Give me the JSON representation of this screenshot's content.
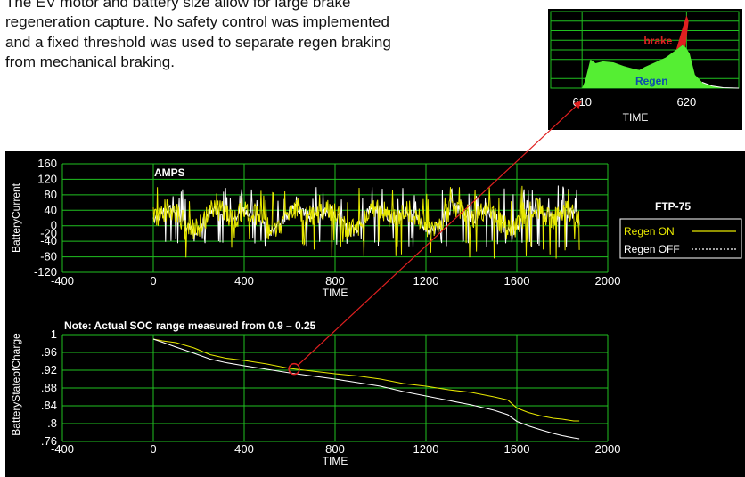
{
  "intro_text": "The EV motor and battery size allow for large brake regeneration capture. No safety control was implemented and a fixed threshold was used to separate regen braking from mechanical braking.",
  "colors": {
    "background": "#000000",
    "grid": "#20c020",
    "regen_on": "#e8e800",
    "regen_off": "#ffffff",
    "regen_fill": "#55ee33",
    "brake_fill": "#e02020",
    "arrow": "#e02020"
  },
  "chart_data": [
    {
      "id": "inset",
      "type": "area",
      "xlabel": "TIME",
      "x_ticks": [
        "610",
        "620"
      ],
      "xlim": [
        607,
        625
      ],
      "areas": [
        {
          "label": "Regen",
          "points": [
            [
              607,
              0
            ],
            [
              610,
              0
            ],
            [
              610.3,
              0.8
            ],
            [
              610.8,
              3.0
            ],
            [
              611.3,
              2.6
            ],
            [
              612,
              2.8
            ],
            [
              613,
              2.7
            ],
            [
              614,
              2.3
            ],
            [
              615,
              2.0
            ],
            [
              615.5,
              1.9
            ],
            [
              616,
              2.2
            ],
            [
              617,
              2.7
            ],
            [
              618,
              3.2
            ],
            [
              619,
              4.0
            ],
            [
              619.6,
              4.5
            ],
            [
              619.9,
              4.3
            ],
            [
              620.3,
              3.6
            ],
            [
              620.8,
              1.4
            ],
            [
              621.5,
              0.6
            ],
            [
              622.5,
              0.2
            ],
            [
              623.5,
              0.05
            ],
            [
              625,
              0
            ]
          ]
        },
        {
          "label": "brake",
          "points": [
            [
              619.0,
              4.0
            ],
            [
              619.6,
              4.5
            ],
            [
              619.9,
              4.3
            ],
            [
              620.2,
              7.0
            ],
            [
              620.0,
              7.6
            ],
            [
              619.6,
              6.2
            ],
            [
              619.0,
              4.0
            ]
          ]
        }
      ]
    },
    {
      "id": "current",
      "type": "line",
      "title": "AMPS",
      "ylabel": "BatteryCurrent",
      "xlabel": "TIME",
      "xlim": [
        -400,
        2000
      ],
      "ylim": [
        -120,
        160
      ],
      "x_ticks": [
        "-400",
        "0",
        "400",
        "800",
        "1200",
        "1600",
        "2000"
      ],
      "y_ticks": [
        "160",
        "120",
        "80",
        "40",
        "0",
        "-20",
        "-40",
        "-80",
        "-120"
      ],
      "x_range": [
        0,
        1875
      ],
      "series": [
        {
          "name": "Regen ON",
          "color": "#e8e800"
        },
        {
          "name": "Regen OFF",
          "color": "#ffffff"
        }
      ],
      "legend": {
        "title": "FTP-75",
        "items": [
          "Regen ON",
          "Regen OFF"
        ]
      }
    },
    {
      "id": "soc",
      "type": "line",
      "note": "Note: Actual SOC range measured from 0.9 – 0.25",
      "ylabel": "BatteryStateofCharge",
      "xlabel": "TIME",
      "xlim": [
        -400,
        2000
      ],
      "ylim": [
        0.76,
        1.0
      ],
      "x_ticks": [
        "-400",
        "0",
        "400",
        "800",
        "1200",
        "1600",
        "2000"
      ],
      "y_ticks": [
        "1",
        ".96",
        ".92",
        ".88",
        ".84",
        ".8",
        ".76"
      ],
      "highlight_x": 620,
      "series": [
        {
          "name": "Regen ON",
          "color": "#e8e800",
          "points": [
            [
              0,
              0.99
            ],
            [
              40,
              0.986
            ],
            [
              100,
              0.982
            ],
            [
              180,
              0.97
            ],
            [
              250,
              0.955
            ],
            [
              320,
              0.947
            ],
            [
              400,
              0.942
            ],
            [
              500,
              0.934
            ],
            [
              600,
              0.924
            ],
            [
              700,
              0.918
            ],
            [
              800,
              0.912
            ],
            [
              900,
              0.907
            ],
            [
              1000,
              0.9
            ],
            [
              1100,
              0.89
            ],
            [
              1200,
              0.884
            ],
            [
              1300,
              0.876
            ],
            [
              1400,
              0.87
            ],
            [
              1500,
              0.86
            ],
            [
              1560,
              0.853
            ],
            [
              1600,
              0.835
            ],
            [
              1650,
              0.825
            ],
            [
              1700,
              0.818
            ],
            [
              1760,
              0.812
            ],
            [
              1800,
              0.81
            ],
            [
              1850,
              0.806
            ],
            [
              1875,
              0.806
            ]
          ]
        },
        {
          "name": "Regen OFF",
          "color": "#ffffff",
          "points": [
            [
              0,
              0.99
            ],
            [
              40,
              0.983
            ],
            [
              100,
              0.972
            ],
            [
              180,
              0.958
            ],
            [
              250,
              0.945
            ],
            [
              320,
              0.937
            ],
            [
              400,
              0.93
            ],
            [
              500,
              0.922
            ],
            [
              600,
              0.914
            ],
            [
              700,
              0.907
            ],
            [
              800,
              0.9
            ],
            [
              900,
              0.892
            ],
            [
              1000,
              0.884
            ],
            [
              1100,
              0.872
            ],
            [
              1200,
              0.862
            ],
            [
              1300,
              0.852
            ],
            [
              1400,
              0.842
            ],
            [
              1500,
              0.83
            ],
            [
              1560,
              0.82
            ],
            [
              1600,
              0.805
            ],
            [
              1650,
              0.795
            ],
            [
              1700,
              0.787
            ],
            [
              1760,
              0.778
            ],
            [
              1800,
              0.773
            ],
            [
              1850,
              0.768
            ],
            [
              1875,
              0.766
            ]
          ]
        }
      ]
    }
  ]
}
